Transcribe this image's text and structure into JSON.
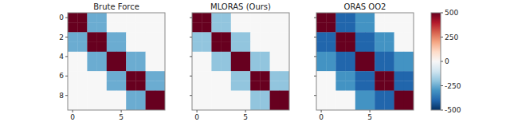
{
  "chart_data": [
    {
      "type": "heatmap",
      "title": "Brute Force",
      "xlim": [
        -0.5,
        9.5
      ],
      "ylim": [
        9.5,
        -0.5
      ],
      "xticks": [
        0,
        5
      ],
      "yticks": [
        0,
        2,
        4,
        6,
        8
      ],
      "zlim": [
        -500,
        500
      ],
      "values": [
        [
          500,
          500,
          -250,
          -250,
          0,
          0,
          0,
          0,
          0,
          0
        ],
        [
          500,
          500,
          -250,
          -250,
          0,
          0,
          0,
          0,
          0,
          0
        ],
        [
          -250,
          -250,
          500,
          500,
          -250,
          -250,
          0,
          0,
          0,
          0
        ],
        [
          -250,
          -250,
          500,
          500,
          -250,
          -250,
          0,
          0,
          0,
          0
        ],
        [
          0,
          0,
          -250,
          -250,
          500,
          500,
          -250,
          -250,
          0,
          0
        ],
        [
          0,
          0,
          -250,
          -250,
          500,
          500,
          -250,
          -250,
          0,
          0
        ],
        [
          0,
          0,
          0,
          0,
          -250,
          -250,
          500,
          500,
          -250,
          -250
        ],
        [
          0,
          0,
          0,
          0,
          -250,
          -250,
          500,
          500,
          -250,
          -250
        ],
        [
          0,
          0,
          0,
          0,
          0,
          0,
          -250,
          -250,
          500,
          500
        ],
        [
          0,
          0,
          0,
          0,
          0,
          0,
          -250,
          -250,
          500,
          500
        ]
      ]
    },
    {
      "type": "heatmap",
      "title": "MLORAS (Ours)",
      "xlim": [
        -0.5,
        9.5
      ],
      "ylim": [
        9.5,
        -0.5
      ],
      "xticks": [
        0,
        5
      ],
      "yticks": [
        0,
        2,
        4,
        6,
        8
      ],
      "tick_labels": "x",
      "zlim": [
        -500,
        500
      ],
      "values": [
        [
          500,
          500,
          -200,
          -200,
          0,
          0,
          0,
          0,
          0,
          0
        ],
        [
          500,
          500,
          -200,
          -200,
          0,
          0,
          0,
          0,
          0,
          0
        ],
        [
          -200,
          -200,
          500,
          500,
          -200,
          -200,
          0,
          0,
          0,
          0
        ],
        [
          -200,
          -200,
          500,
          500,
          -200,
          -200,
          0,
          0,
          0,
          0
        ],
        [
          0,
          0,
          -200,
          -200,
          500,
          500,
          -200,
          -200,
          0,
          0
        ],
        [
          0,
          0,
          -200,
          -200,
          500,
          500,
          -200,
          -200,
          0,
          0
        ],
        [
          0,
          0,
          0,
          0,
          -200,
          -200,
          500,
          500,
          -200,
          -200
        ],
        [
          0,
          0,
          0,
          0,
          -200,
          -200,
          500,
          500,
          -200,
          -200
        ],
        [
          0,
          0,
          0,
          0,
          0,
          0,
          -200,
          -200,
          500,
          500
        ],
        [
          0,
          0,
          0,
          0,
          0,
          0,
          -200,
          -200,
          500,
          500
        ]
      ]
    },
    {
      "type": "heatmap",
      "title": "ORAS OO2",
      "xlim": [
        -0.5,
        9.5
      ],
      "ylim": [
        9.5,
        -0.5
      ],
      "xticks": [
        0,
        5
      ],
      "yticks": [
        0,
        2,
        4,
        6,
        8
      ],
      "tick_labels": "x",
      "zlim": [
        -500,
        500
      ],
      "colorbar_ticks": [
        500,
        250,
        0,
        -250,
        -500
      ],
      "values": [
        [
          500,
          500,
          -400,
          -400,
          -300,
          -300,
          0,
          0,
          0,
          0
        ],
        [
          500,
          500,
          -400,
          -400,
          -300,
          -300,
          0,
          0,
          0,
          0
        ],
        [
          -400,
          -400,
          500,
          500,
          -400,
          -400,
          -300,
          -300,
          0,
          0
        ],
        [
          -400,
          -400,
          500,
          500,
          -400,
          -400,
          -300,
          -300,
          0,
          0
        ],
        [
          -300,
          -300,
          -400,
          -400,
          500,
          500,
          -400,
          -400,
          -300,
          -300
        ],
        [
          -300,
          -300,
          -400,
          -400,
          500,
          500,
          -400,
          -400,
          -300,
          -300
        ],
        [
          0,
          0,
          -300,
          -300,
          -400,
          -400,
          500,
          500,
          -400,
          -400
        ],
        [
          0,
          0,
          -300,
          -300,
          -400,
          -400,
          500,
          500,
          -400,
          -400
        ],
        [
          0,
          0,
          0,
          0,
          -300,
          -300,
          -400,
          -400,
          500,
          500
        ],
        [
          0,
          0,
          0,
          0,
          -300,
          -300,
          -400,
          -400,
          500,
          500
        ]
      ]
    }
  ]
}
